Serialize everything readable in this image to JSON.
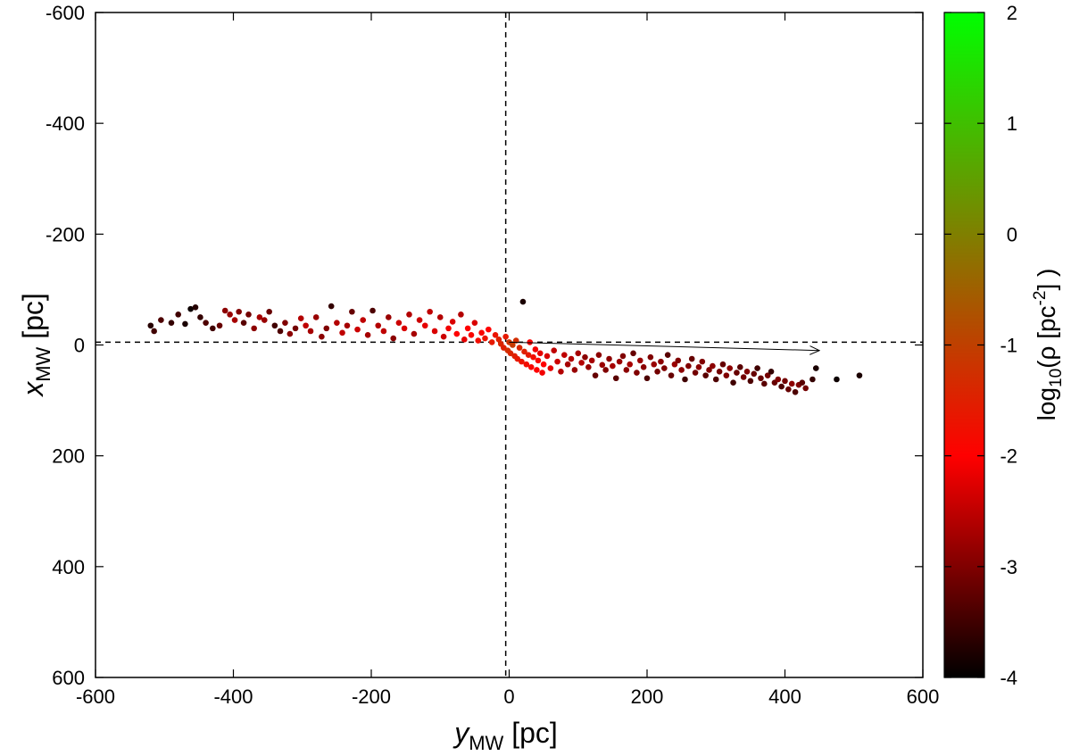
{
  "chart_data": {
    "type": "scatter",
    "xlabel": {
      "main": "y",
      "sub": "MW",
      "unit": " [pc]"
    },
    "ylabel": {
      "main": "x",
      "sub": "MW",
      "unit": " [pc]"
    },
    "xlim": [
      -600,
      600
    ],
    "ylim": [
      600,
      -600
    ],
    "y_axis_inverted": true,
    "xticks": [
      -600,
      -400,
      -200,
      0,
      200,
      400,
      600
    ],
    "yticks": [
      -600,
      -400,
      -200,
      0,
      200,
      400,
      600
    ],
    "grid": false,
    "reference_lines": {
      "vertical_x": -5,
      "horizontal_y": -5,
      "style": "dashed"
    },
    "arrow": {
      "from": [
        0,
        -5
      ],
      "to": [
        450,
        10
      ]
    },
    "colorbar": {
      "label": {
        "prefix": "log",
        "sub": "10",
        "mid": "(ρ [pc",
        "sup": "-2",
        "suffix": "] )"
      },
      "range": [
        -4,
        2
      ],
      "ticks": [
        -4,
        -3,
        -2,
        -1,
        0,
        1,
        2
      ],
      "colors": [
        "#000000",
        "#ff0000",
        "#00ff00"
      ]
    },
    "points": [
      [
        -520,
        -35,
        -3.7
      ],
      [
        -515,
        -25,
        -3.5
      ],
      [
        -505,
        -45,
        -3.4
      ],
      [
        -490,
        -40,
        -3.6
      ],
      [
        -480,
        -55,
        -3.5
      ],
      [
        -470,
        -38,
        -3.8
      ],
      [
        -462,
        -65,
        -3.9
      ],
      [
        -455,
        -68,
        -3.7
      ],
      [
        -448,
        -50,
        -3.6
      ],
      [
        -440,
        -40,
        -3.4
      ],
      [
        -430,
        -30,
        -3.5
      ],
      [
        -420,
        -35,
        -3.2
      ],
      [
        -412,
        -62,
        -2.9
      ],
      [
        -405,
        -55,
        -2.8
      ],
      [
        -398,
        -45,
        -2.7
      ],
      [
        -392,
        -60,
        -3.0
      ],
      [
        -385,
        -40,
        -3.3
      ],
      [
        -378,
        -55,
        -3.1
      ],
      [
        -370,
        -30,
        -2.9
      ],
      [
        -362,
        -50,
        -2.7
      ],
      [
        -355,
        -45,
        -2.8
      ],
      [
        -348,
        -60,
        -3.2
      ],
      [
        -340,
        -35,
        -3.5
      ],
      [
        -332,
        -25,
        -3.4
      ],
      [
        -325,
        -40,
        -3.0
      ],
      [
        -318,
        -20,
        -2.9
      ],
      [
        -310,
        -30,
        -3.1
      ],
      [
        -302,
        -48,
        -2.6
      ],
      [
        -295,
        -35,
        -2.5
      ],
      [
        -288,
        -25,
        -2.7
      ],
      [
        -280,
        -50,
        -2.8
      ],
      [
        -272,
        -15,
        -2.9
      ],
      [
        -265,
        -30,
        -3.0
      ],
      [
        -258,
        -70,
        -3.6
      ],
      [
        -250,
        -40,
        -2.6
      ],
      [
        -242,
        -22,
        -2.5
      ],
      [
        -235,
        -35,
        -2.7
      ],
      [
        -228,
        -60,
        -3.2
      ],
      [
        -220,
        -28,
        -2.4
      ],
      [
        -212,
        -45,
        -2.5
      ],
      [
        -205,
        -18,
        -2.7
      ],
      [
        -198,
        -62,
        -3.4
      ],
      [
        -190,
        -35,
        -2.6
      ],
      [
        -182,
        -25,
        -2.5
      ],
      [
        -175,
        -50,
        -2.8
      ],
      [
        -168,
        -12,
        -2.9
      ],
      [
        -160,
        -40,
        -2.4
      ],
      [
        -152,
        -30,
        -2.3
      ],
      [
        -145,
        -55,
        -2.6
      ],
      [
        -138,
        -20,
        -2.7
      ],
      [
        -130,
        -45,
        -2.4
      ],
      [
        -122,
        -35,
        -2.2
      ],
      [
        -115,
        -60,
        -2.5
      ],
      [
        -108,
        -25,
        -2.3
      ],
      [
        -100,
        -50,
        -2.6
      ],
      [
        -95,
        -15,
        -2.4
      ],
      [
        -88,
        -30,
        -2.1
      ],
      [
        -82,
        -42,
        -2.3
      ],
      [
        -76,
        -20,
        -2.0
      ],
      [
        -70,
        -55,
        -2.6
      ],
      [
        -65,
        -10,
        -2.2
      ],
      [
        -60,
        -30,
        -2.0
      ],
      [
        -55,
        -18,
        -1.9
      ],
      [
        -50,
        -40,
        -2.3
      ],
      [
        -45,
        -8,
        -1.8
      ],
      [
        -40,
        -22,
        -1.9
      ],
      [
        -35,
        -12,
        -1.7
      ],
      [
        -30,
        -28,
        -2.0
      ],
      [
        -25,
        -5,
        -1.6
      ],
      [
        -20,
        -18,
        -1.7
      ],
      [
        -15,
        -10,
        -1.5
      ],
      [
        -12,
        -2,
        -1.4
      ],
      [
        -8,
        5,
        -1.5
      ],
      [
        -5,
        -15,
        -1.6
      ],
      [
        -2,
        10,
        -1.3
      ],
      [
        0,
        -5,
        -1.2
      ],
      [
        2,
        15,
        -1.4
      ],
      [
        5,
        0,
        -1.1
      ],
      [
        8,
        20,
        -1.5
      ],
      [
        10,
        -8,
        -1.3
      ],
      [
        12,
        25,
        -1.6
      ],
      [
        15,
        5,
        -1.4
      ],
      [
        18,
        30,
        -1.7
      ],
      [
        20,
        -78,
        -3.8
      ],
      [
        22,
        12,
        -1.5
      ],
      [
        25,
        35,
        -1.8
      ],
      [
        28,
        18,
        -1.6
      ],
      [
        30,
        -5,
        -2.0
      ],
      [
        32,
        40,
        -1.9
      ],
      [
        35,
        22,
        -1.8
      ],
      [
        38,
        8,
        -2.1
      ],
      [
        40,
        45,
        -2.0
      ],
      [
        42,
        28,
        -1.9
      ],
      [
        45,
        15,
        -2.2
      ],
      [
        48,
        50,
        -2.1
      ],
      [
        50,
        35,
        -2.0
      ],
      [
        55,
        20,
        -2.3
      ],
      [
        60,
        42,
        -2.2
      ],
      [
        65,
        10,
        -2.5
      ],
      [
        70,
        30,
        -2.4
      ],
      [
        75,
        48,
        -2.6
      ],
      [
        80,
        18,
        -2.5
      ],
      [
        85,
        35,
        -2.7
      ],
      [
        90,
        25,
        -2.6
      ],
      [
        95,
        45,
        -2.8
      ],
      [
        100,
        15,
        -2.7
      ],
      [
        105,
        32,
        -2.6
      ],
      [
        110,
        22,
        -2.9
      ],
      [
        115,
        40,
        -2.8
      ],
      [
        120,
        28,
        -2.7
      ],
      [
        125,
        55,
        -3.2
      ],
      [
        130,
        18,
        -2.9
      ],
      [
        135,
        36,
        -2.8
      ],
      [
        140,
        45,
        -3.0
      ],
      [
        145,
        25,
        -2.9
      ],
      [
        150,
        38,
        -2.7
      ],
      [
        155,
        60,
        -3.3
      ],
      [
        160,
        30,
        -2.8
      ],
      [
        165,
        20,
        -3.0
      ],
      [
        170,
        45,
        -2.9
      ],
      [
        175,
        35,
        -2.7
      ],
      [
        180,
        15,
        -3.2
      ],
      [
        185,
        50,
        -3.0
      ],
      [
        190,
        28,
        -2.8
      ],
      [
        195,
        40,
        -2.9
      ],
      [
        200,
        60,
        -3.4
      ],
      [
        205,
        22,
        -3.0
      ],
      [
        210,
        35,
        -2.8
      ],
      [
        215,
        48,
        -3.1
      ],
      [
        220,
        30,
        -2.9
      ],
      [
        225,
        42,
        -3.0
      ],
      [
        230,
        18,
        -3.3
      ],
      [
        235,
        55,
        -3.2
      ],
      [
        240,
        35,
        -2.8
      ],
      [
        245,
        28,
        -3.0
      ],
      [
        250,
        45,
        -2.9
      ],
      [
        255,
        62,
        -3.5
      ],
      [
        260,
        38,
        -3.0
      ],
      [
        265,
        25,
        -3.2
      ],
      [
        270,
        50,
        -3.1
      ],
      [
        275,
        40,
        -2.9
      ],
      [
        280,
        30,
        -3.0
      ],
      [
        285,
        55,
        -3.3
      ],
      [
        290,
        45,
        -3.0
      ],
      [
        295,
        38,
        -2.9
      ],
      [
        300,
        62,
        -3.4
      ],
      [
        305,
        48,
        -3.1
      ],
      [
        310,
        35,
        -3.2
      ],
      [
        315,
        55,
        -3.0
      ],
      [
        320,
        42,
        -2.9
      ],
      [
        325,
        68,
        -3.5
      ],
      [
        330,
        50,
        -3.2
      ],
      [
        335,
        40,
        -3.3
      ],
      [
        340,
        58,
        -3.1
      ],
      [
        345,
        48,
        -3.0
      ],
      [
        350,
        65,
        -3.4
      ],
      [
        355,
        52,
        -3.2
      ],
      [
        360,
        42,
        -3.5
      ],
      [
        365,
        60,
        -3.2
      ],
      [
        370,
        70,
        -3.3
      ],
      [
        375,
        55,
        -3.1
      ],
      [
        380,
        48,
        -3.6
      ],
      [
        385,
        68,
        -3.2
      ],
      [
        390,
        62,
        -3.0
      ],
      [
        395,
        75,
        -3.4
      ],
      [
        400,
        65,
        -3.1
      ],
      [
        405,
        80,
        -3.2
      ],
      [
        410,
        70,
        -2.9
      ],
      [
        415,
        85,
        -3.4
      ],
      [
        420,
        72,
        -3.0
      ],
      [
        425,
        68,
        -3.3
      ],
      [
        430,
        78,
        -3.1
      ],
      [
        440,
        62,
        -3.6
      ],
      [
        445,
        42,
        -3.8
      ],
      [
        475,
        62,
        -3.9
      ],
      [
        508,
        55,
        -3.8
      ]
    ]
  }
}
